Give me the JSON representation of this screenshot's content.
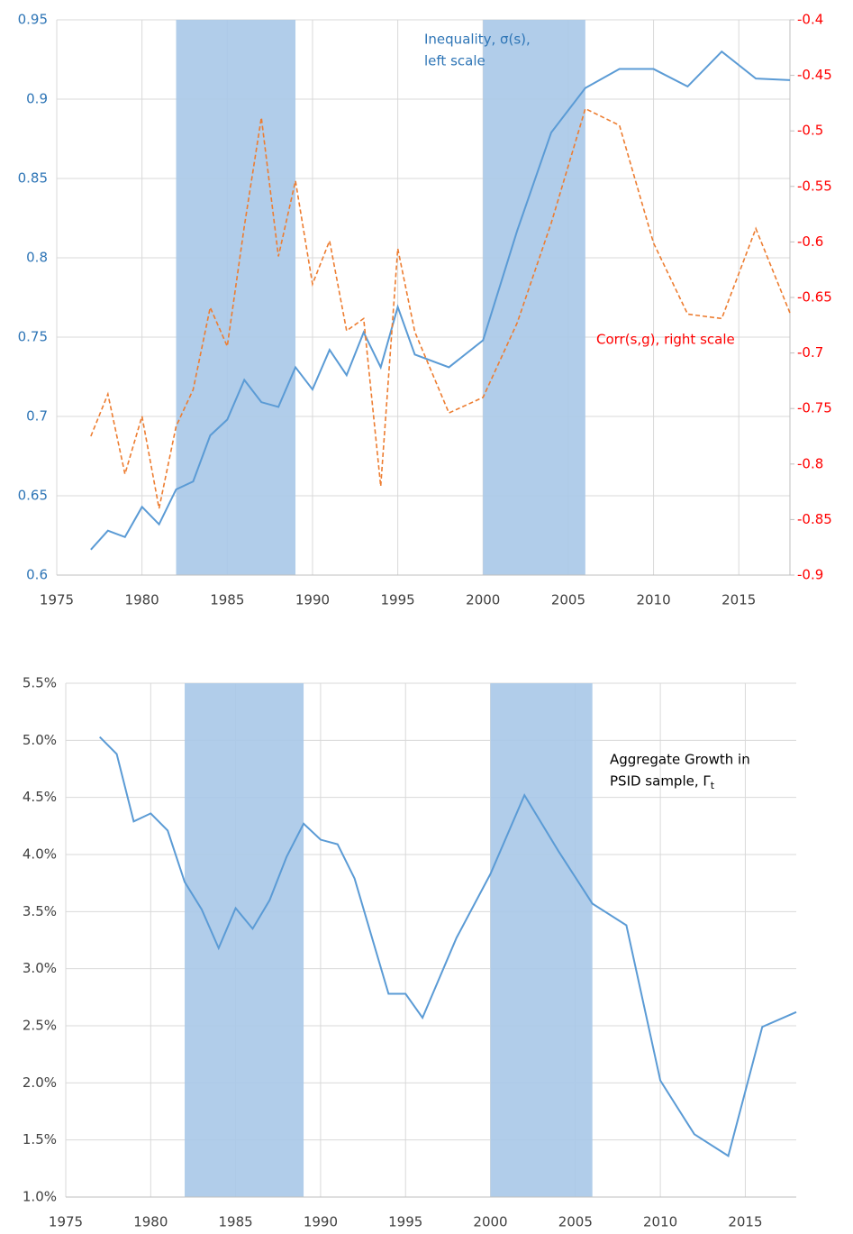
{
  "chart_data": [
    {
      "type": "line",
      "x": [
        1977,
        1978,
        1979,
        1980,
        1981,
        1982,
        1983,
        1984,
        1985,
        1986,
        1987,
        1988,
        1989,
        1990,
        1991,
        1992,
        1993,
        1994,
        1995,
        1996,
        1998,
        2000,
        2002,
        2004,
        2006,
        2008,
        2010,
        2012,
        2014,
        2016,
        2018
      ],
      "series": [
        {
          "name": "Inequality, σ(s)",
          "color": "#5b9bd5",
          "style": "solid",
          "axis": "y",
          "values": [
            0.616,
            0.628,
            0.624,
            0.643,
            0.632,
            0.654,
            0.659,
            0.688,
            0.698,
            0.723,
            0.709,
            0.706,
            0.731,
            0.717,
            0.742,
            0.726,
            0.753,
            0.731,
            0.769,
            0.739,
            0.731,
            0.748,
            0.817,
            0.879,
            0.907,
            0.919,
            0.919,
            0.908,
            0.93,
            0.913,
            0.912
          ]
        },
        {
          "name": "Corr(s,g)",
          "color": "#ed7d31",
          "style": "dashed",
          "axis": "y2",
          "values": [
            -0.775,
            -0.737,
            -0.809,
            -0.757,
            -0.84,
            -0.766,
            -0.733,
            -0.659,
            -0.694,
            -0.586,
            -0.488,
            -0.613,
            -0.545,
            -0.638,
            -0.599,
            -0.68,
            -0.669,
            -0.82,
            -0.606,
            -0.681,
            -0.754,
            -0.74,
            -0.673,
            -0.583,
            -0.48,
            -0.495,
            -0.601,
            -0.665,
            -0.669,
            -0.588,
            -0.664
          ]
        }
      ],
      "shaded": [
        [
          1982,
          1989
        ],
        [
          2000,
          2006
        ]
      ],
      "shade_color": "#a9c8e8",
      "xlim": [
        1975,
        2018
      ],
      "xticks": [
        1975,
        1980,
        1985,
        1990,
        1995,
        2000,
        2005,
        2010,
        2015
      ],
      "ylim": [
        0.6,
        0.95
      ],
      "yticks": [
        0.6,
        0.65,
        0.7,
        0.75,
        0.8,
        0.85,
        0.9,
        0.95
      ],
      "ytick_color": "#2e75b6",
      "y2lim": [
        -0.9,
        -0.4
      ],
      "y2ticks": [
        -0.9,
        -0.85,
        -0.8,
        -0.75,
        -0.7,
        -0.65,
        -0.6,
        -0.55,
        -0.5,
        -0.45,
        -0.4
      ],
      "y2tick_color": "#ff0000",
      "grid": true,
      "annotations": [
        {
          "lines": [
            "Inequality, σ(s),",
            "left scale"
          ],
          "color": "#2e75b6"
        },
        {
          "lines": [
            "Corr(s,g), right scale"
          ],
          "color": "#ff0000"
        }
      ]
    },
    {
      "type": "line",
      "x": [
        1977,
        1978,
        1979,
        1980,
        1981,
        1982,
        1983,
        1984,
        1985,
        1986,
        1987,
        1988,
        1989,
        1990,
        1991,
        1992,
        1994,
        1995,
        1996,
        1998,
        2000,
        2002,
        2004,
        2006,
        2008,
        2010,
        2012,
        2014,
        2016,
        2018
      ],
      "series": [
        {
          "color": "#5b9bd5",
          "style": "solid",
          "axis": "y",
          "values": [
            5.03,
            4.88,
            4.29,
            4.36,
            4.21,
            3.76,
            3.52,
            3.18,
            3.53,
            3.35,
            3.6,
            3.98,
            4.27,
            4.13,
            4.09,
            3.79,
            2.78,
            2.78,
            2.57,
            3.27,
            3.83,
            4.52,
            4.03,
            3.57,
            3.38,
            2.02,
            1.55,
            1.36,
            2.49,
            2.62
          ]
        }
      ],
      "shaded": [
        [
          1982,
          1989
        ],
        [
          2000,
          2006
        ]
      ],
      "shade_color": "#a9c8e8",
      "xlim": [
        1975,
        2018
      ],
      "xticks": [
        1975,
        1980,
        1985,
        1990,
        1995,
        2000,
        2005,
        2010,
        2015
      ],
      "ylim": [
        1.0,
        5.5
      ],
      "yticks": [
        {
          "value": 1.0,
          "label": "1.0%"
        },
        {
          "value": 1.5,
          "label": "1.5%"
        },
        {
          "value": 2.0,
          "label": "2.0%"
        },
        {
          "value": 2.5,
          "label": "2.5%"
        },
        {
          "value": 3.0,
          "label": "3.0%"
        },
        {
          "value": 3.5,
          "label": "3.5%"
        },
        {
          "value": 4.0,
          "label": "4.0%"
        },
        {
          "value": 4.5,
          "label": "4.5%"
        },
        {
          "value": 5.0,
          "label": "5.0%"
        },
        {
          "value": 5.5,
          "label": "5.5%"
        }
      ],
      "ytick_color": "#404040",
      "grid": true,
      "annotations": [
        {
          "lines": [
            "Aggregate Growth in",
            "PSID sample, Γ"
          ],
          "subscript": "t",
          "color": "#000000"
        }
      ]
    }
  ]
}
